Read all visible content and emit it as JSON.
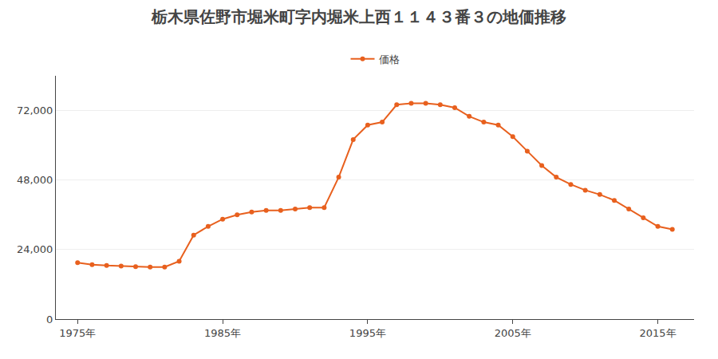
{
  "chart_data": {
    "type": "line",
    "title": "栃木県佐野市堀米町字内堀米上西１１４３番３の地価推移",
    "x": [
      1975,
      1976,
      1977,
      1978,
      1979,
      1980,
      1981,
      1982,
      1983,
      1984,
      1985,
      1986,
      1987,
      1988,
      1989,
      1990,
      1991,
      1992,
      1993,
      1994,
      1995,
      1996,
      1997,
      1998,
      1999,
      2000,
      2001,
      2002,
      2003,
      2004,
      2005,
      2006,
      2007,
      2008,
      2009,
      2010,
      2011,
      2012,
      2013,
      2014,
      2015,
      2016
    ],
    "series": [
      {
        "name": "価格",
        "color": "#E8601E",
        "marker": "circle",
        "values": [
          19500,
          18800,
          18500,
          18300,
          18100,
          18000,
          18000,
          20000,
          29000,
          32000,
          34500,
          36000,
          37000,
          37500,
          37500,
          38000,
          38500,
          38500,
          49000,
          62000,
          67000,
          68000,
          74000,
          74500,
          74500,
          74000,
          73000,
          70000,
          68000,
          67000,
          63000,
          58000,
          53000,
          49000,
          46500,
          44500,
          43000,
          41000,
          38000,
          35000,
          32000,
          31000
        ]
      }
    ],
    "xlim": [
      1973.5,
      2017.5
    ],
    "xticks": [
      {
        "value": 1975,
        "label": "1975年"
      },
      {
        "value": 1985,
        "label": "1985年"
      },
      {
        "value": 1995,
        "label": "1995年"
      },
      {
        "value": 2005,
        "label": "2005年"
      },
      {
        "value": 2015,
        "label": "2015年"
      }
    ],
    "ylim": [
      0,
      84000
    ],
    "yticks": [
      0,
      {
        "value": 24000,
        "label": "24,000"
      },
      {
        "value": 48000,
        "label": "48,000"
      },
      {
        "value": 72000,
        "label": "72,000"
      }
    ],
    "grid": true,
    "legend": "top"
  }
}
